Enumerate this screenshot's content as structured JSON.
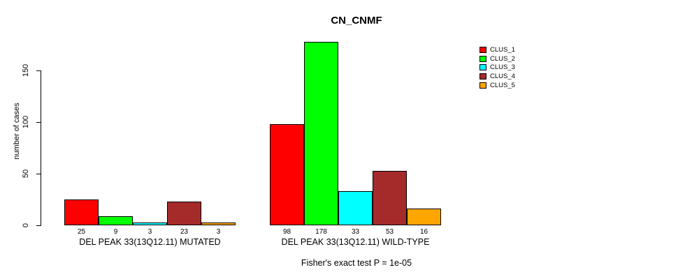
{
  "chart_data": {
    "type": "bar",
    "title": "CN_CNMF",
    "ylabel": "number of cases",
    "yticks": [
      0,
      50,
      100,
      150
    ],
    "ylim": [
      0,
      178
    ],
    "grid": false,
    "legend_position": "right",
    "clusters": [
      {
        "name": "CLUS_1",
        "color": "#FF0000"
      },
      {
        "name": "CLUS_2",
        "color": "#00FF00"
      },
      {
        "name": "CLUS_3",
        "color": "#00FFFF"
      },
      {
        "name": "CLUS_4",
        "color": "#A52A2A"
      },
      {
        "name": "CLUS_5",
        "color": "#FFA500"
      }
    ],
    "groups": [
      {
        "label": "DEL PEAK 33(13Q12.11) MUTATED",
        "values": [
          25,
          9,
          3,
          23,
          3
        ]
      },
      {
        "label": "DEL PEAK 33(13Q12.11) WILD-TYPE",
        "values": [
          98,
          178,
          33,
          53,
          16
        ]
      }
    ],
    "footnote": "Fisher's exact test P = 1e-05"
  }
}
